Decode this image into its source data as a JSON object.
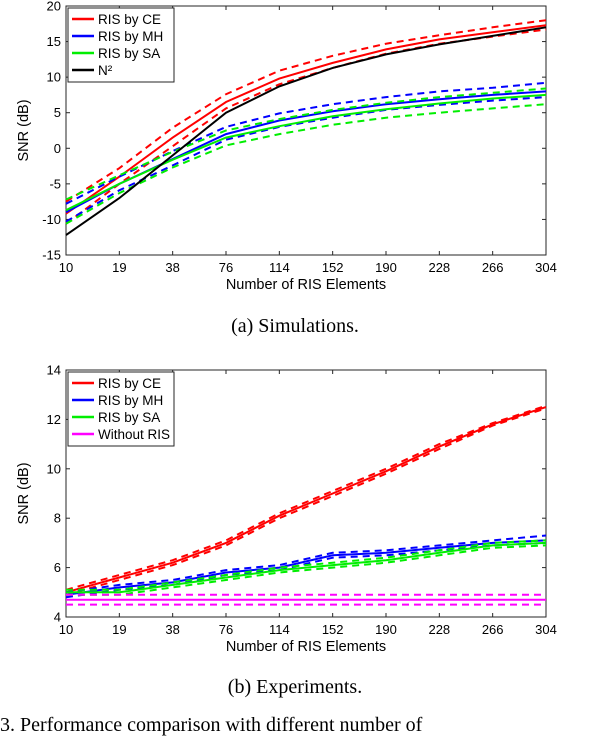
{
  "captions": {
    "a": "(a) Simulations.",
    "b": "(b) Experiments.",
    "footer_partial": "3. Performance comparison with different number of"
  },
  "chart_data": [
    {
      "type": "line",
      "xlabel": "Number of RIS Elements",
      "ylabel": "SNR (dB)",
      "x": [
        10,
        19,
        38,
        76,
        114,
        152,
        190,
        228,
        266,
        304
      ],
      "yticks": [
        -15,
        -10,
        -5,
        0,
        5,
        10,
        15,
        20
      ],
      "ylim": [
        -15,
        20
      ],
      "legend": "top-left",
      "series": [
        {
          "name": "RIS by CE",
          "color": "#ff0000",
          "values": [
            -9.2,
            -4.0,
            1.5,
            6.5,
            9.8,
            12.0,
            13.9,
            15.3,
            16.3,
            17.3
          ],
          "upper": [
            -7.5,
            -2.8,
            2.9,
            7.6,
            10.9,
            13.0,
            14.7,
            15.9,
            17.0,
            18.0
          ],
          "lower": [
            -10.6,
            -5.0,
            0.3,
            5.6,
            9.0,
            11.3,
            13.3,
            14.7,
            15.7,
            16.7
          ]
        },
        {
          "name": "RIS by MH",
          "color": "#0000ff",
          "values": [
            -9.0,
            -5.0,
            -1.5,
            2.0,
            3.9,
            5.2,
            6.2,
            6.9,
            7.5,
            8.0
          ],
          "upper": [
            -7.8,
            -4.0,
            -0.4,
            3.0,
            4.9,
            6.2,
            7.2,
            8.0,
            8.5,
            9.2
          ],
          "lower": [
            -10.3,
            -5.9,
            -2.4,
            1.2,
            3.0,
            4.3,
            5.4,
            6.1,
            6.7,
            7.2
          ]
        },
        {
          "name": "RIS by SA",
          "color": "#00ee00",
          "values": [
            -8.7,
            -5.0,
            -1.6,
            1.5,
            3.1,
            4.5,
            5.5,
            6.3,
            7.0,
            7.5
          ],
          "upper": [
            -7.2,
            -3.8,
            -0.5,
            2.5,
            4.1,
            5.4,
            6.4,
            7.2,
            7.8,
            8.4
          ],
          "lower": [
            -10.6,
            -6.3,
            -2.7,
            0.4,
            2.0,
            3.3,
            4.3,
            5.0,
            5.6,
            6.2
          ]
        },
        {
          "name": "N²",
          "color": "#000000",
          "values": [
            -12.2,
            -7.0,
            -1.0,
            5.0,
            8.7,
            11.3,
            13.2,
            14.6,
            15.8,
            17.0
          ]
        }
      ]
    },
    {
      "type": "line",
      "xlabel": "Number of RIS Elements",
      "ylabel": "SNR (dB)",
      "x": [
        10,
        19,
        38,
        76,
        114,
        152,
        190,
        228,
        266,
        304
      ],
      "yticks": [
        4,
        6,
        8,
        10,
        12,
        14
      ],
      "ylim": [
        4,
        14
      ],
      "legend": "top-left",
      "series": [
        {
          "name": "RIS by CE",
          "color": "#ff0000",
          "values": [
            5.0,
            5.6,
            6.2,
            7.0,
            8.1,
            9.0,
            9.9,
            10.9,
            11.8,
            12.5
          ],
          "upper": [
            5.1,
            5.7,
            6.3,
            7.1,
            8.2,
            9.1,
            10.0,
            11.0,
            11.85,
            12.55
          ],
          "lower": [
            4.9,
            5.5,
            6.1,
            6.9,
            8.0,
            8.9,
            9.8,
            10.8,
            11.75,
            12.45
          ]
        },
        {
          "name": "RIS by MH",
          "color": "#0000ff",
          "values": [
            4.9,
            5.2,
            5.4,
            5.8,
            6.0,
            6.5,
            6.6,
            6.8,
            7.0,
            7.1
          ],
          "upper": [
            5.0,
            5.3,
            5.5,
            5.9,
            6.1,
            6.6,
            6.7,
            6.9,
            7.1,
            7.3
          ],
          "lower": [
            4.8,
            5.1,
            5.3,
            5.7,
            5.9,
            6.4,
            6.5,
            6.7,
            6.9,
            7.0
          ]
        },
        {
          "name": "RIS by SA",
          "color": "#00ee00",
          "values": [
            5.0,
            5.0,
            5.3,
            5.6,
            5.9,
            6.1,
            6.3,
            6.6,
            6.9,
            7.0
          ],
          "upper": [
            5.1,
            5.1,
            5.4,
            5.7,
            6.0,
            6.2,
            6.4,
            6.7,
            7.0,
            7.1
          ],
          "lower": [
            4.9,
            4.9,
            5.2,
            5.5,
            5.8,
            6.0,
            6.2,
            6.5,
            6.8,
            6.9
          ]
        },
        {
          "name": "Without RIS",
          "color": "#ff00ff",
          "values": [
            4.7,
            4.7,
            4.7,
            4.7,
            4.7,
            4.7,
            4.7,
            4.7,
            4.7,
            4.7
          ],
          "upper": [
            4.9,
            4.9,
            4.9,
            4.9,
            4.9,
            4.9,
            4.9,
            4.9,
            4.9,
            4.9
          ],
          "lower": [
            4.5,
            4.5,
            4.5,
            4.5,
            4.5,
            4.5,
            4.5,
            4.5,
            4.5,
            4.5
          ]
        }
      ]
    }
  ]
}
